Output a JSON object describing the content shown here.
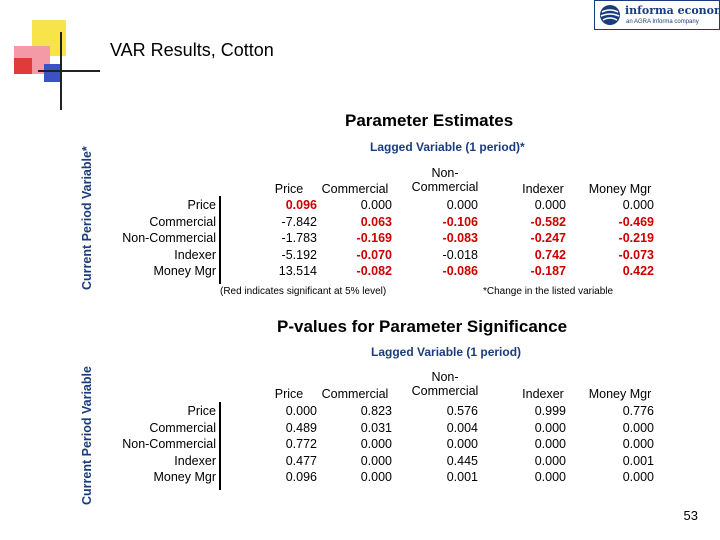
{
  "slide": {
    "title": "VAR Results, Cotton",
    "page_number": "53"
  },
  "logo": {
    "brand": "informa economics",
    "tagline": "an AGRA Informa company"
  },
  "table1": {
    "title": "Parameter Estimates",
    "lag_label": "Lagged Variable (1 period)*",
    "vertical_label": "Current Period Variable*",
    "columns": [
      "Price",
      "Commercial",
      "Non-\nCommercial",
      "Indexer",
      "Money Mgr"
    ],
    "rows": [
      {
        "label": "Price",
        "values": [
          "0.096",
          "0.000",
          "0.000",
          "0.000",
          "0.000"
        ],
        "sig": [
          true,
          false,
          false,
          false,
          false
        ]
      },
      {
        "label": "Commercial",
        "values": [
          "-7.842",
          "0.063",
          "-0.106",
          "-0.582",
          "-0.469"
        ],
        "sig": [
          false,
          true,
          true,
          true,
          true
        ]
      },
      {
        "label": "Non-Commercial",
        "values": [
          "-1.783",
          "-0.169",
          "-0.083",
          "-0.247",
          "-0.219"
        ],
        "sig": [
          false,
          true,
          true,
          true,
          true
        ]
      },
      {
        "label": "Indexer",
        "values": [
          "-5.192",
          "-0.070",
          "-0.018",
          "0.742",
          "-0.073"
        ],
        "sig": [
          false,
          true,
          false,
          true,
          true
        ]
      },
      {
        "label": "Money Mgr",
        "values": [
          "13.514",
          "-0.082",
          "-0.086",
          "-0.187",
          "0.422"
        ],
        "sig": [
          false,
          true,
          true,
          true,
          true
        ]
      }
    ],
    "note_left": "(Red indicates significant at 5% level)",
    "note_right": "*Change in the listed variable"
  },
  "table2": {
    "title": "P-values for Parameter Significance",
    "lag_label": "Lagged Variable (1 period)",
    "vertical_label": "Current Period Variable",
    "columns": [
      "Price",
      "Commercial",
      "Non-\nCommercial",
      "Indexer",
      "Money Mgr"
    ],
    "rows": [
      {
        "label": "Price",
        "values": [
          "0.000",
          "0.823",
          "0.576",
          "0.999",
          "0.776"
        ]
      },
      {
        "label": "Commercial",
        "values": [
          "0.489",
          "0.031",
          "0.004",
          "0.000",
          "0.000"
        ]
      },
      {
        "label": "Non-Commercial",
        "values": [
          "0.772",
          "0.000",
          "0.000",
          "0.000",
          "0.000"
        ]
      },
      {
        "label": "Indexer",
        "values": [
          "0.477",
          "0.000",
          "0.445",
          "0.000",
          "0.001"
        ]
      },
      {
        "label": "Money Mgr",
        "values": [
          "0.096",
          "0.000",
          "0.001",
          "0.000",
          "0.000"
        ]
      }
    ]
  },
  "colors": {
    "accent_blue": "#1a3c7e",
    "significant_red": "#cc0000",
    "deco_yellow": "#f7e34a",
    "deco_pink": "#f39aa6",
    "deco_red": "#e23a3a",
    "deco_blue": "#3b52c4"
  }
}
